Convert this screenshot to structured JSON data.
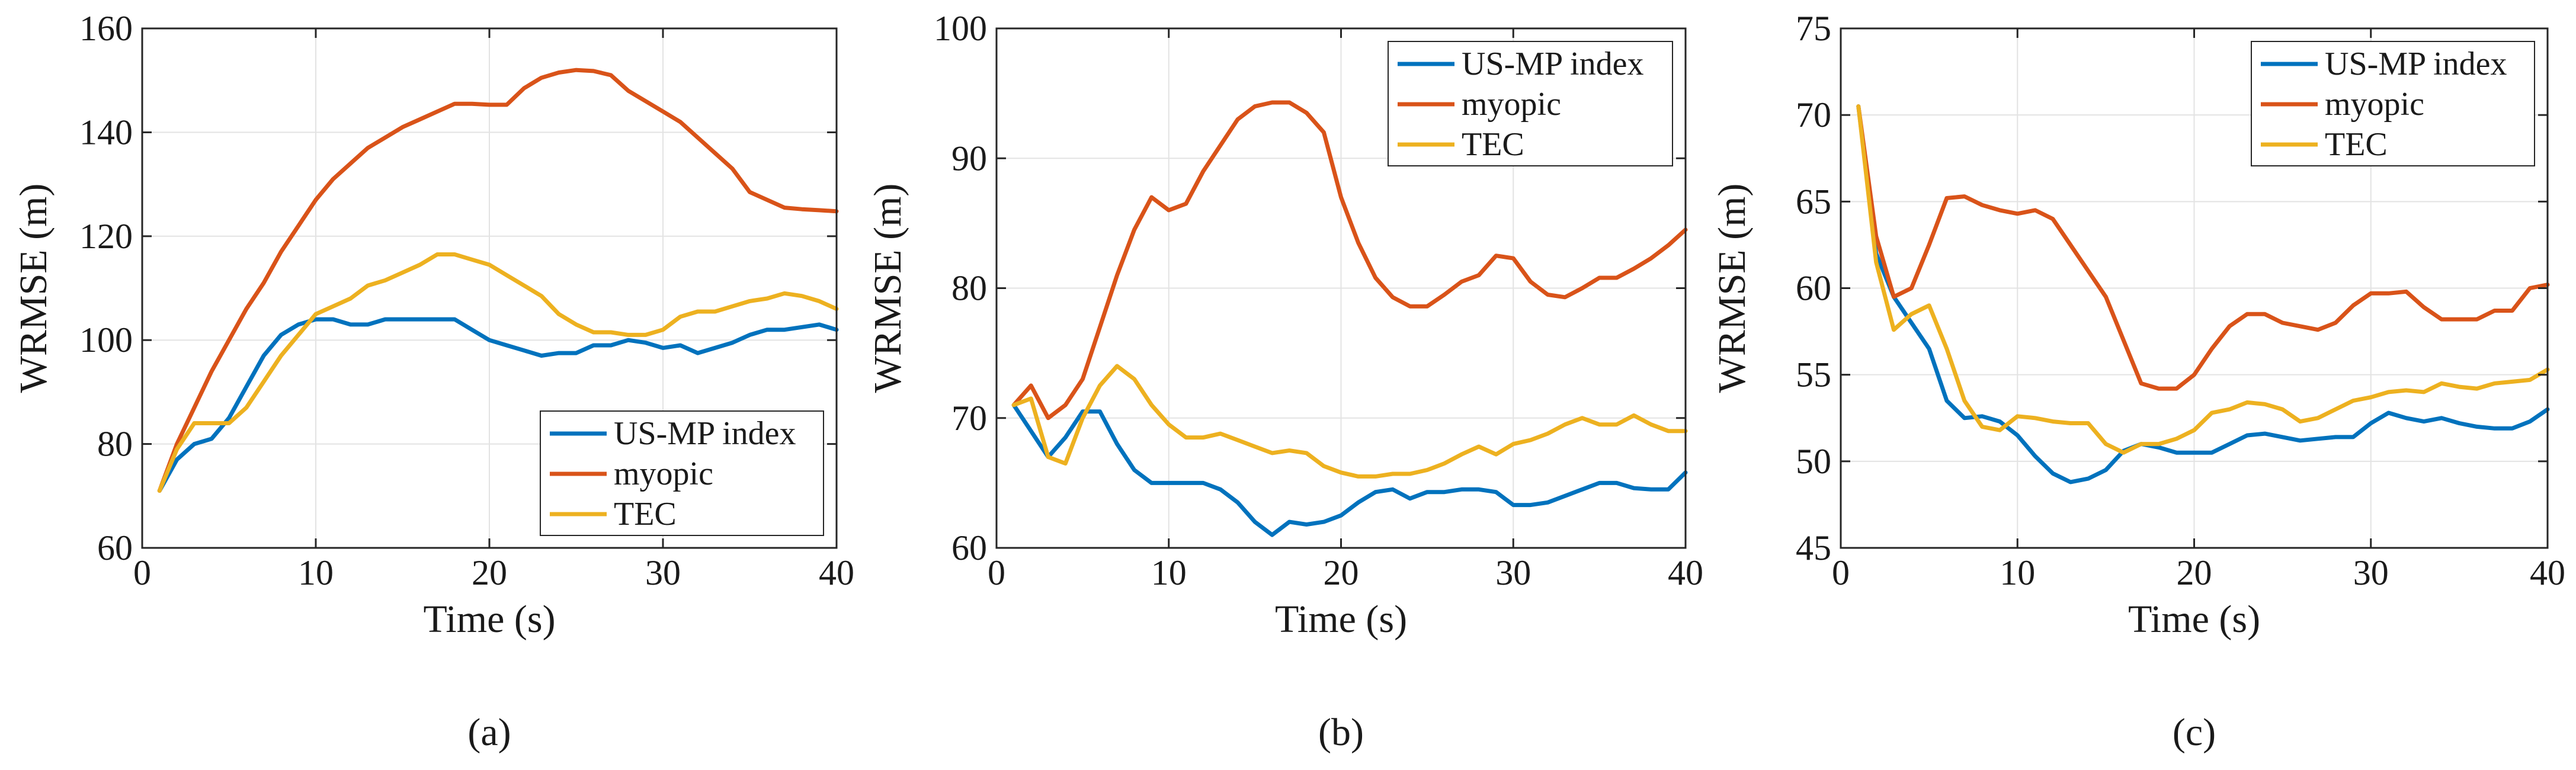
{
  "figure": {
    "colors": {
      "us_mp": "#0072BD",
      "myopic": "#D95319",
      "tec": "#EDB120",
      "grid": "#e3e3e3",
      "axis": "#262626"
    }
  },
  "chart_data": [
    {
      "type": "line",
      "panel_label": "(a)",
      "xlabel": "Time (s)",
      "ylabel": "WRMSE (m)",
      "xlim": [
        0,
        40
      ],
      "ylim": [
        60,
        160
      ],
      "xticks": [
        0,
        10,
        20,
        30,
        40
      ],
      "yticks": [
        60,
        80,
        100,
        120,
        140,
        160
      ],
      "grid": true,
      "legend_position": "bottom-right",
      "x": [
        1,
        2,
        3,
        4,
        5,
        6,
        7,
        8,
        9,
        10,
        11,
        12,
        13,
        14,
        15,
        16,
        17,
        18,
        19,
        20,
        21,
        22,
        23,
        24,
        25,
        26,
        27,
        28,
        29,
        30,
        31,
        32,
        33,
        34,
        35,
        36,
        37,
        38,
        39,
        40
      ],
      "series": [
        {
          "name": "US-MP index",
          "color_key": "us_mp",
          "values": [
            71,
            77,
            80,
            81,
            85,
            91,
            97,
            101,
            103,
            104,
            104,
            103,
            103,
            104,
            104,
            104,
            104,
            104,
            102,
            100,
            99,
            98,
            97,
            97.5,
            97.5,
            99,
            99,
            100,
            99.5,
            98.5,
            99,
            97.5,
            98.5,
            99.5,
            101,
            102,
            102,
            102.5,
            103,
            102
          ]
        },
        {
          "name": "myopic",
          "color_key": "myopic",
          "values": [
            71,
            80,
            87,
            94,
            100,
            106,
            111,
            117,
            122,
            127,
            131,
            134,
            137,
            139,
            141,
            142.5,
            144,
            145.5,
            145.5,
            145.3,
            145.3,
            148.5,
            150.5,
            151.5,
            152,
            151.8,
            151,
            148,
            146,
            144,
            142,
            139,
            136,
            133,
            128.5,
            127,
            125.5,
            125.2,
            125,
            124.8
          ]
        },
        {
          "name": "TEC",
          "color_key": "tec",
          "values": [
            71,
            79,
            84,
            84,
            84,
            87,
            92,
            97,
            101,
            105,
            106.5,
            108,
            110.5,
            111.5,
            113,
            114.5,
            116.5,
            116.5,
            115.5,
            114.5,
            112.5,
            110.5,
            108.5,
            105,
            103,
            101.5,
            101.5,
            101,
            101,
            102,
            104.5,
            105.5,
            105.5,
            106.5,
            107.5,
            108,
            109,
            108.5,
            107.5,
            106
          ]
        }
      ]
    },
    {
      "type": "line",
      "panel_label": "(b)",
      "xlabel": "Time (s)",
      "ylabel": "WRMSE (m)",
      "xlim": [
        0,
        40
      ],
      "ylim": [
        60,
        100
      ],
      "xticks": [
        0,
        10,
        20,
        30,
        40
      ],
      "yticks": [
        60,
        70,
        80,
        90,
        100
      ],
      "grid": true,
      "legend_position": "top-right",
      "x": [
        1,
        2,
        3,
        4,
        5,
        6,
        7,
        8,
        9,
        10,
        11,
        12,
        13,
        14,
        15,
        16,
        17,
        18,
        19,
        20,
        21,
        22,
        23,
        24,
        25,
        26,
        27,
        28,
        29,
        30,
        31,
        32,
        33,
        34,
        35,
        36,
        37,
        38,
        39,
        40
      ],
      "series": [
        {
          "name": "US-MP index",
          "color_key": "us_mp",
          "values": [
            71,
            69,
            67,
            68.5,
            70.5,
            70.5,
            68,
            66,
            65,
            65,
            65,
            65,
            64.5,
            63.5,
            62,
            61,
            62,
            61.8,
            62,
            62.5,
            63.5,
            64.3,
            64.5,
            63.8,
            64.3,
            64.3,
            64.5,
            64.5,
            64.3,
            63.3,
            63.3,
            63.5,
            64,
            64.5,
            65,
            65,
            64.6,
            64.5,
            64.5,
            65.8
          ]
        },
        {
          "name": "myopic",
          "color_key": "myopic",
          "values": [
            71,
            72.5,
            70,
            71,
            73,
            77,
            81,
            84.5,
            87,
            86,
            86.5,
            89,
            91,
            93,
            94,
            94.3,
            94.3,
            93.5,
            92,
            87,
            83.5,
            80.8,
            79.3,
            78.6,
            78.6,
            79.5,
            80.5,
            81,
            82.5,
            82.3,
            80.5,
            79.5,
            79.3,
            80,
            80.8,
            80.8,
            81.5,
            82.3,
            83.3,
            84.5
          ]
        },
        {
          "name": "TEC",
          "color_key": "tec",
          "values": [
            71,
            71.5,
            67,
            66.5,
            70,
            72.5,
            74,
            73,
            71,
            69.5,
            68.5,
            68.5,
            68.8,
            68.3,
            67.8,
            67.3,
            67.5,
            67.3,
            66.3,
            65.8,
            65.5,
            65.5,
            65.7,
            65.7,
            66,
            66.5,
            67.2,
            67.8,
            67.2,
            68,
            68.3,
            68.8,
            69.5,
            70,
            69.5,
            69.5,
            70.2,
            69.5,
            69,
            69
          ]
        }
      ]
    },
    {
      "type": "line",
      "panel_label": "(c)",
      "xlabel": "Time (s)",
      "ylabel": "WRMSE (m)",
      "xlim": [
        0,
        40
      ],
      "ylim": [
        45,
        75
      ],
      "xticks": [
        0,
        10,
        20,
        30,
        40
      ],
      "yticks": [
        45,
        50,
        55,
        60,
        65,
        70,
        75
      ],
      "grid": true,
      "legend_position": "top-right",
      "x": [
        1,
        2,
        3,
        4,
        5,
        6,
        7,
        8,
        9,
        10,
        11,
        12,
        13,
        14,
        15,
        16,
        17,
        18,
        19,
        20,
        21,
        22,
        23,
        24,
        25,
        26,
        27,
        28,
        29,
        30,
        31,
        32,
        33,
        34,
        35,
        36,
        37,
        38,
        39,
        40
      ],
      "series": [
        {
          "name": "US-MP index",
          "color_key": "us_mp",
          "values": [
            70.5,
            62,
            59.5,
            58,
            56.5,
            53.5,
            52.5,
            52.6,
            52.3,
            51.5,
            50.3,
            49.3,
            48.8,
            49,
            49.5,
            50.6,
            51,
            50.8,
            50.5,
            50.5,
            50.5,
            51,
            51.5,
            51.6,
            51.4,
            51.2,
            51.3,
            51.4,
            51.4,
            52.2,
            52.8,
            52.5,
            52.3,
            52.5,
            52.2,
            52,
            51.9,
            51.9,
            52.3,
            53
          ]
        },
        {
          "name": "myopic",
          "color_key": "myopic",
          "values": [
            70.5,
            63,
            59.5,
            60,
            62.5,
            65.2,
            65.3,
            64.8,
            64.5,
            64.3,
            64.5,
            64,
            62.5,
            61,
            59.5,
            57,
            54.5,
            54.2,
            54.2,
            55,
            56.5,
            57.8,
            58.5,
            58.5,
            58,
            57.8,
            57.6,
            58,
            59,
            59.7,
            59.7,
            59.8,
            58.9,
            58.2,
            58.2,
            58.2,
            58.7,
            58.7,
            60,
            60.2
          ]
        },
        {
          "name": "TEC",
          "color_key": "tec",
          "values": [
            70.5,
            61.5,
            57.6,
            58.5,
            59,
            56.5,
            53.5,
            52,
            51.8,
            52.6,
            52.5,
            52.3,
            52.2,
            52.2,
            51,
            50.5,
            51,
            51,
            51.3,
            51.8,
            52.8,
            53,
            53.4,
            53.3,
            53,
            52.3,
            52.5,
            53,
            53.5,
            53.7,
            54,
            54.1,
            54,
            54.5,
            54.3,
            54.2,
            54.5,
            54.6,
            54.7,
            55.3
          ]
        }
      ]
    }
  ]
}
